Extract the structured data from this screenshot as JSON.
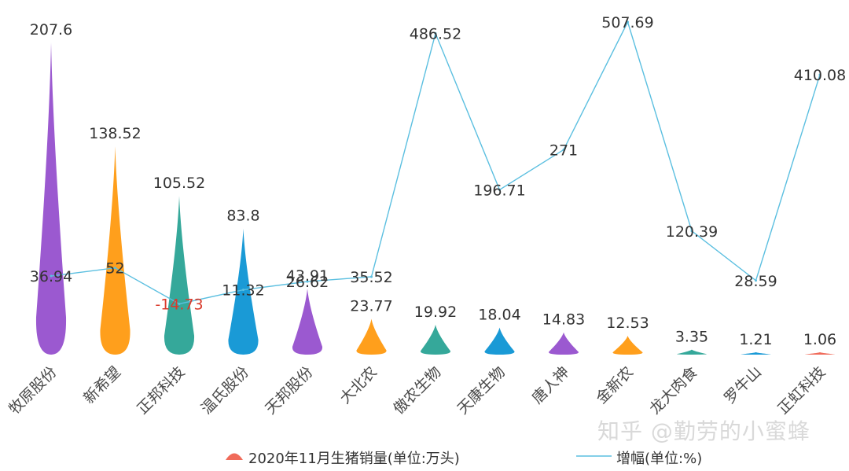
{
  "chart_data": {
    "type": "bar",
    "categories": [
      "牧原股份",
      "新希望",
      "正邦科技",
      "温氏股份",
      "天邦股份",
      "大北农",
      "傲农生物",
      "天康生物",
      "唐人神",
      "金新农",
      "龙大肉食",
      "罗牛山",
      "正虹科技"
    ],
    "series": [
      {
        "name": "2020年11月生猪销量(单位:万头)",
        "kind": "bar",
        "values": [
          207.6,
          138.52,
          105.52,
          83.8,
          43.91,
          23.77,
          19.92,
          18.04,
          14.83,
          12.53,
          3.35,
          1.21,
          1.06
        ],
        "labels": [
          "207.6",
          "138.52",
          "105.52",
          "83.8",
          "43.91",
          "23.77",
          "19.92",
          "18.04",
          "14.83",
          "12.53",
          "3.35",
          "1.21",
          "1.06"
        ],
        "colors": [
          "#9b59d0",
          "#ff9f1c",
          "#35a89a",
          "#1a9ad6",
          "#9b59d0",
          "#ff9f1c",
          "#35a89a",
          "#1a9ad6",
          "#9b59d0",
          "#ff9f1c",
          "#35a89a",
          "#1a9ad6",
          "#f06b5a"
        ]
      },
      {
        "name": "增幅(单位:%)",
        "kind": "line",
        "values": [
          36.94,
          52,
          -14.73,
          11.32,
          26.62,
          35.52,
          486.52,
          196.71,
          271,
          507.69,
          120.39,
          28.59,
          410.08
        ],
        "labels": [
          "36.94",
          "52",
          "-14.73",
          "11.32",
          "26.62",
          "35.52",
          "486.52",
          "196.71",
          "271",
          "507.69",
          "120.39",
          "28.59",
          "410.08"
        ],
        "color": "#5bbfe0"
      }
    ],
    "legend_position": "bottom",
    "grid": false
  },
  "watermark": "知乎 @勤劳的小蜜蜂",
  "legend": {
    "bar_label": "2020年11月生猪销量(单位:万头)",
    "line_label": "增幅(单位:%)",
    "bar_color": "#f06b5a",
    "line_color": "#5bbfe0"
  }
}
